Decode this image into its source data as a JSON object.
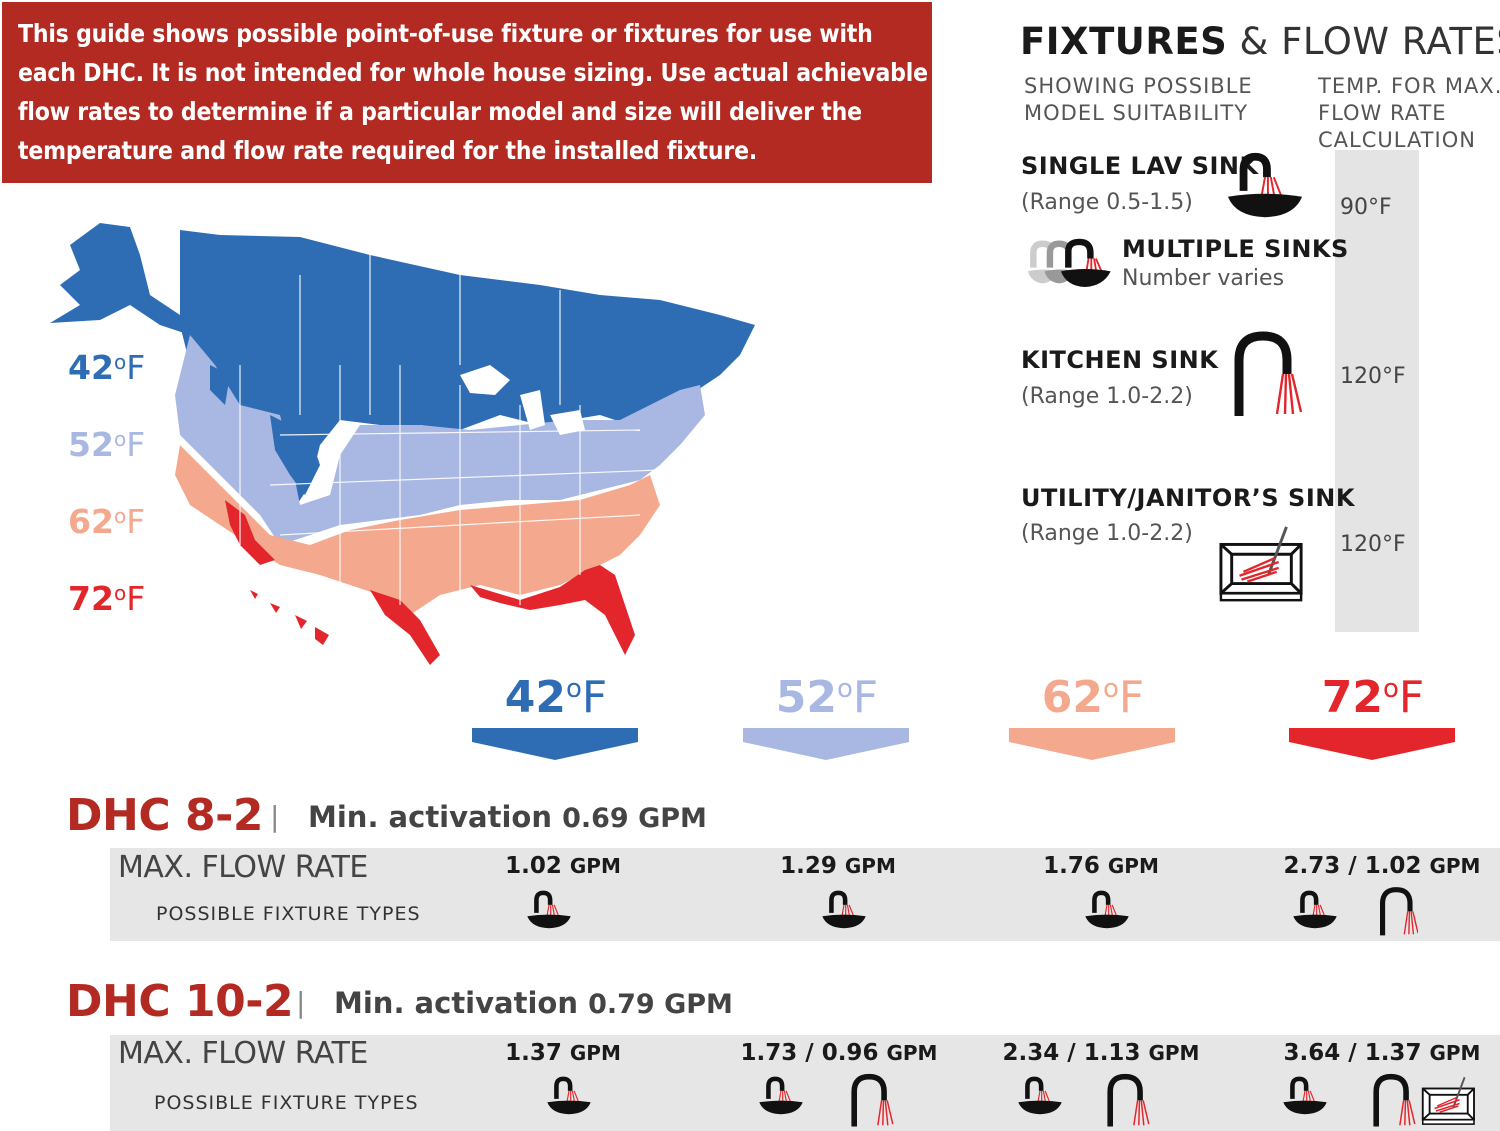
{
  "banner": {
    "lines": [
      "This guide shows possible point-of-use fixture or fixtures for use with",
      "each DHC. It is not intended for whole house sizing. Use actual achievable",
      "flow rates to determine if a particular model and size will deliver the",
      "temperature and flow rate required for the installed fixture."
    ]
  },
  "legend": {
    "title_bold": "FIXTURES",
    "title_rest": "& FLOW RATES",
    "col1_line1": "SHOWING POSSIBLE",
    "col1_line2": "MODEL SUITABILITY",
    "col2_line1": "TEMP. FOR MAX.",
    "col2_line2": "FLOW RATE",
    "col2_line3": "CALCULATION",
    "fixtures": [
      {
        "name": "SINGLE LAV SINK",
        "range": "(Range 0.5-1.5)",
        "temp": "90°F",
        "icon": "lav-sink-icon"
      },
      {
        "name": "MULTIPLE SINKS",
        "range": "Number varies",
        "temp": "",
        "icon": "multiple-sinks-icon"
      },
      {
        "name": "KITCHEN SINK",
        "range": "(Range 1.0-2.2)",
        "temp": "120°F",
        "icon": "kitchen-faucet-icon"
      },
      {
        "name": "UTILITY/JANITOR’S SINK",
        "range": "(Range 1.0-2.2)",
        "temp": "120°F",
        "icon": "utility-sink-icon"
      }
    ]
  },
  "map_legend": [
    {
      "value": "42",
      "deg": "o",
      "unit": "F",
      "color": "#2e6db4"
    },
    {
      "value": "52",
      "deg": "o",
      "unit": "F",
      "color": "#a9b8e2"
    },
    {
      "value": "62",
      "deg": "o",
      "unit": "F",
      "color": "#f4a98f"
    },
    {
      "value": "72",
      "deg": "o",
      "unit": "F",
      "color": "#e3262b"
    }
  ],
  "temp_headers": [
    {
      "value": "42",
      "deg": "o",
      "unit": "F",
      "color": "#2e6db4"
    },
    {
      "value": "52",
      "deg": "o",
      "unit": "F",
      "color": "#a9b8e2"
    },
    {
      "value": "62",
      "deg": "o",
      "unit": "F",
      "color": "#f4a98f"
    },
    {
      "value": "72",
      "deg": "o",
      "unit": "F",
      "color": "#e3262b"
    }
  ],
  "models": [
    {
      "name": "DHC 8-2",
      "sep": "|",
      "activation_label": "Min. activation",
      "activation_value": "0.69 GPM",
      "max_flow_label": "MAX. FLOW RATE",
      "fixture_types_label": "POSSIBLE FIXTURE TYPES",
      "rates": [
        {
          "num": "1.02",
          "unit": "GPM",
          "icons": [
            "lav-sink-icon"
          ]
        },
        {
          "num": "1.29",
          "unit": "GPM",
          "icons": [
            "lav-sink-icon"
          ]
        },
        {
          "num": "1.76",
          "unit": "GPM",
          "icons": [
            "lav-sink-icon"
          ]
        },
        {
          "num": "2.73 / 1.02",
          "unit": "GPM",
          "icons": [
            "lav-sink-icon",
            "kitchen-faucet-icon"
          ]
        }
      ]
    },
    {
      "name": "DHC 10-2",
      "sep": "|",
      "activation_label": "Min. activation",
      "activation_value": "0.79 GPM",
      "max_flow_label": "MAX. FLOW RATE",
      "fixture_types_label": "POSSIBLE FIXTURE TYPES",
      "rates": [
        {
          "num": "1.37",
          "unit": "GPM",
          "icons": [
            "lav-sink-icon"
          ]
        },
        {
          "num": "1.73 / 0.96",
          "unit": "GPM",
          "icons": [
            "lav-sink-icon",
            "kitchen-faucet-icon"
          ]
        },
        {
          "num": "2.34 / 1.13",
          "unit": "GPM",
          "icons": [
            "lav-sink-icon",
            "kitchen-faucet-icon"
          ]
        },
        {
          "num": "3.64 / 1.37",
          "unit": "GPM",
          "icons": [
            "lav-sink-icon",
            "kitchen-faucet-icon",
            "utility-sink-icon"
          ]
        }
      ]
    }
  ]
}
